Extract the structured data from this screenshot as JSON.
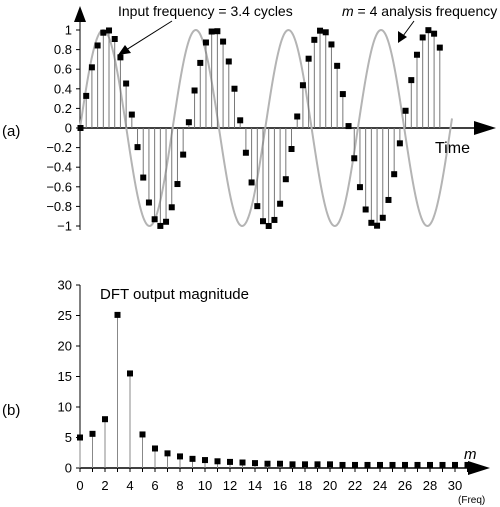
{
  "chart_data": [
    {
      "type": "line",
      "panel_label": "(a)",
      "xlabel": "Time",
      "ylim": [
        -1,
        1
      ],
      "yticks": [
        {
          "v": 1,
          "label": "1"
        },
        {
          "v": 0.8,
          "label": "0.8"
        },
        {
          "v": 0.6,
          "label": "0.6"
        },
        {
          "v": 0.4,
          "label": "0.4"
        },
        {
          "v": 0.2,
          "label": "0.2"
        },
        {
          "v": 0,
          "label": "0"
        },
        {
          "v": -0.2,
          "label": "−0.2"
        },
        {
          "v": -0.4,
          "label": "−0.4"
        },
        {
          "v": -0.6,
          "label": "−0.6"
        },
        {
          "v": -0.8,
          "label": "−0.8"
        },
        {
          "v": -1,
          "label": "−1"
        }
      ],
      "series": [
        {
          "role": "input",
          "style": "sampled-stems",
          "color": "#000000",
          "cycles": 3.4,
          "samples": 64
        },
        {
          "role": "analysis",
          "style": "line",
          "color": "#b4b4b4",
          "cycles": 4
        }
      ],
      "annotations": [
        {
          "text": "Input frequency = 3.4 cycles"
        },
        {
          "text_italic": "m",
          "text": " = 4 analysis frequency"
        }
      ]
    },
    {
      "type": "scatter",
      "panel_label": "(b)",
      "title": "DFT output magnitude",
      "xlabel": "m",
      "xlabel_sub": "(Freq)",
      "xlim": [
        0,
        31
      ],
      "ylim": [
        0,
        30
      ],
      "xticks": [
        0,
        2,
        4,
        6,
        8,
        10,
        12,
        14,
        16,
        18,
        20,
        22,
        24,
        26,
        28,
        30
      ],
      "yticks": [
        0,
        5,
        10,
        15,
        20,
        25,
        30
      ],
      "series": [
        {
          "style": "stems",
          "color": "#000000",
          "x": [
            0,
            1,
            2,
            3,
            4,
            5,
            6,
            7,
            8,
            9,
            10,
            11,
            12,
            13,
            14,
            15,
            16,
            17,
            18,
            19,
            20,
            21,
            22,
            23,
            24,
            25,
            26,
            27,
            28,
            29,
            30,
            31
          ],
          "y": [
            5,
            5.6,
            8,
            25.1,
            15.5,
            5.5,
            3.2,
            2.4,
            1.9,
            1.5,
            1.3,
            1.1,
            1,
            0.9,
            0.8,
            0.7,
            0.7,
            0.6,
            0.6,
            0.6,
            0.6,
            0.5,
            0.5,
            0.5,
            0.5,
            0.5,
            0.5,
            0.5,
            0.5,
            0.5,
            0.5,
            0.5
          ]
        }
      ]
    }
  ]
}
